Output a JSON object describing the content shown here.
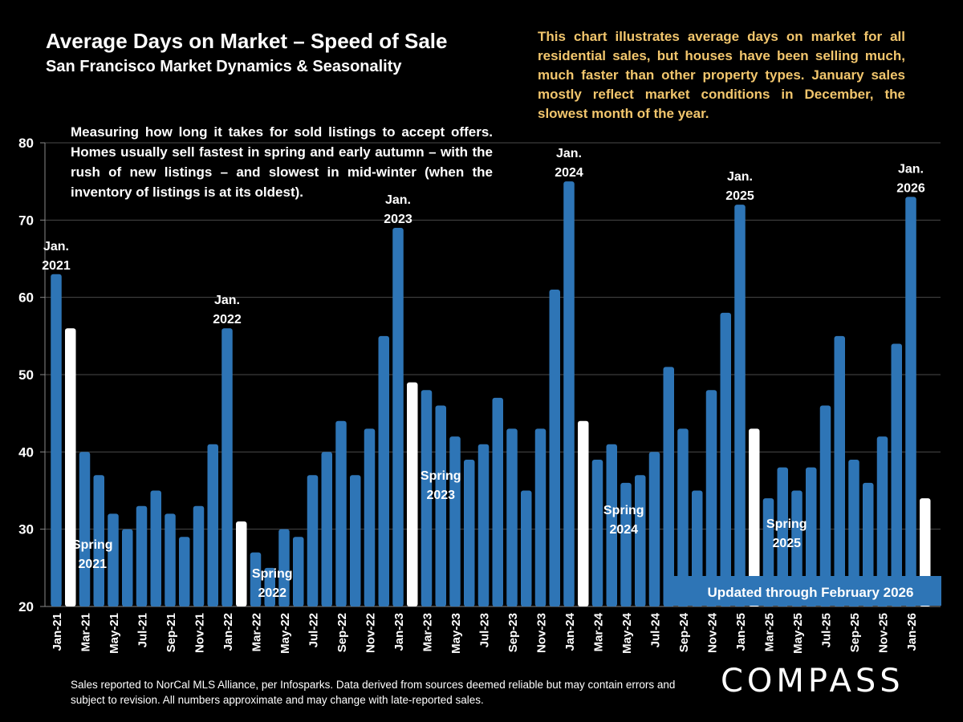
{
  "header": {
    "title": "Average Days on Market – Speed of Sale",
    "subtitle": "San Francisco Market Dynamics & Seasonality"
  },
  "note": "This chart illustrates average days on market for all residential sales, but houses have been selling much, much faster than other property types. January sales mostly reflect market conditions in December, the slowest month of the year.",
  "description": "Measuring how long it takes for sold listings to accept offers. Homes usually sell fastest in spring and early autumn – with the rush of new listings – and slowest in mid-winter (when the inventory of listings is at its oldest).",
  "footer": "Sales reported to NorCal MLS Alliance, per Infosparks. Data derived from sources deemed reliable but may contain errors and subject to revision. All numbers approximate and may change with late-reported sales.",
  "logo": "COMPASS",
  "updated_label": "Updated through February 2026",
  "colors": {
    "bar": "#2e75b6",
    "highlight": "#ffffff",
    "note": "#f2c66d",
    "background": "#000000"
  },
  "chart_data": {
    "type": "bar",
    "title": "",
    "xlabel": "",
    "ylabel": "",
    "ylim": [
      20,
      80
    ],
    "yticks": [
      20,
      30,
      40,
      50,
      60,
      70,
      80
    ],
    "grid": true,
    "categories": [
      "Jan-21",
      "Feb-21",
      "Mar-21",
      "Apr-21",
      "May-21",
      "Jun-21",
      "Jul-21",
      "Aug-21",
      "Sep-21",
      "Oct-21",
      "Nov-21",
      "Dec-21",
      "Jan-22",
      "Feb-22",
      "Mar-22",
      "Apr-22",
      "May-22",
      "Jun-22",
      "Jul-22",
      "Aug-22",
      "Sep-22",
      "Oct-22",
      "Nov-22",
      "Dec-22",
      "Jan-23",
      "Feb-23",
      "Mar-23",
      "Apr-23",
      "May-23",
      "Jun-23",
      "Jul-23",
      "Aug-23",
      "Sep-23",
      "Oct-23",
      "Nov-23",
      "Dec-23",
      "Jan-24",
      "Feb-24",
      "Mar-24",
      "Apr-24",
      "May-24",
      "Jun-24",
      "Jul-24",
      "Aug-24",
      "Sep-24",
      "Oct-24",
      "Nov-24",
      "Dec-24",
      "Jan-25",
      "Feb-25",
      "Mar-25",
      "Apr-25",
      "May-25",
      "Jun-25",
      "Jul-25",
      "Aug-25",
      "Sep-25",
      "Oct-25",
      "Nov-25",
      "Dec-25",
      "Jan-26",
      "Feb-26"
    ],
    "values": [
      63,
      56,
      40,
      37,
      32,
      30,
      33,
      35,
      32,
      29,
      33,
      41,
      56,
      31,
      27,
      25,
      30,
      29,
      37,
      40,
      44,
      37,
      43,
      55,
      69,
      49,
      48,
      46,
      42,
      39,
      41,
      47,
      43,
      35,
      43,
      61,
      75,
      44,
      39,
      41,
      36,
      37,
      40,
      51,
      43,
      35,
      48,
      58,
      72,
      43,
      34,
      38,
      35,
      38,
      46,
      55,
      39,
      36,
      42,
      54,
      73,
      34
    ],
    "highlighted_categories": [
      "Feb-21",
      "Feb-22",
      "Feb-23",
      "Feb-24",
      "Feb-25",
      "Feb-26"
    ],
    "annotations": [
      {
        "category": "Jan-21",
        "text": [
          "Jan.",
          "2021"
        ]
      },
      {
        "category": "Jan-22",
        "text": [
          "Jan.",
          "2022"
        ]
      },
      {
        "category": "Jan-23",
        "text": [
          "Jan.",
          "2023"
        ]
      },
      {
        "category": "Jan-24",
        "text": [
          "Jan.",
          "2024"
        ]
      },
      {
        "category": "Jan-25",
        "text": [
          "Jan.",
          "2025"
        ]
      },
      {
        "category": "Jan-26",
        "text": [
          "Jan.",
          "2026"
        ]
      },
      {
        "category": "Apr-21",
        "text": [
          "Spring",
          "2021"
        ]
      },
      {
        "category": "Apr-22",
        "text": [
          "Spring",
          "2022"
        ]
      },
      {
        "category": "Apr-23",
        "text": [
          "Spring",
          "2023"
        ]
      },
      {
        "category": "Apr-24",
        "text": [
          "Spring",
          "2024"
        ]
      },
      {
        "category": "Apr-25",
        "text": [
          "Spring",
          "2025"
        ]
      }
    ]
  }
}
